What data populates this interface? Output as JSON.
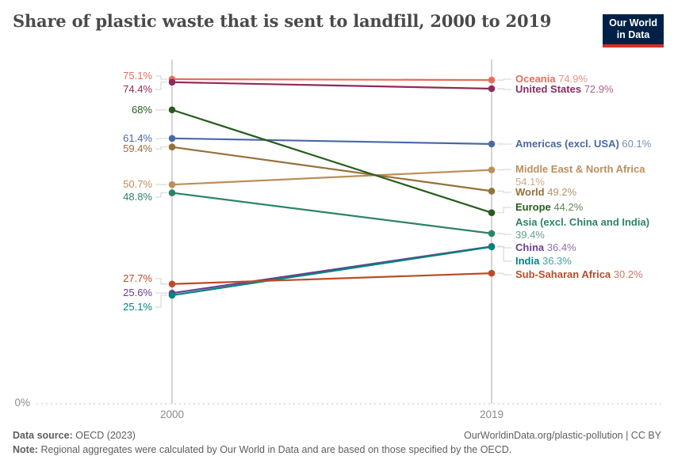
{
  "header": {
    "logo": {
      "line1": "Our World",
      "line2": "in Data",
      "bg_color": "#002147",
      "accent_color": "#dc2c27"
    }
  },
  "chart_data": {
    "type": "line",
    "variant": "slope",
    "title": "Share of plastic waste that is sent to landfill, 2000 to 2019",
    "x": [
      2000,
      2019
    ],
    "x_tick_labels": [
      "2000",
      "2019"
    ],
    "y_axis": {
      "baseline_label": "0%",
      "ylim": [
        0,
        80
      ],
      "unit": "%"
    },
    "grid": "baseline-dotted",
    "legend_position": "right-inline-labels",
    "series": [
      {
        "name": "Oceania",
        "color": "#e56e5a",
        "values": [
          75.1,
          74.9
        ],
        "start_label": "75.1%",
        "end_label": "74.9%"
      },
      {
        "name": "United States",
        "color": "#8d2b5c",
        "values": [
          74.4,
          72.9
        ],
        "start_label": "74.4%",
        "end_label": "72.9%"
      },
      {
        "name": "Americas (excl. USA)",
        "color": "#4968a5",
        "values": [
          61.4,
          60.1
        ],
        "start_label": "61.4%",
        "end_label": "60.1%"
      },
      {
        "name": "Middle East & North Africa",
        "color": "#bc8e5a",
        "values": [
          50.7,
          54.1
        ],
        "start_label": "50.7%",
        "end_label": "54.1%"
      },
      {
        "name": "World",
        "color": "#96703a",
        "values": [
          59.4,
          49.2
        ],
        "start_label": "59.4%",
        "end_label": "49.2%"
      },
      {
        "name": "Europe",
        "color": "#265c1d",
        "values": [
          68,
          44.2
        ],
        "start_label": "68%",
        "end_label": "44.2%"
      },
      {
        "name": "Asia (excl. China and India)",
        "color": "#2c8465",
        "values": [
          48.8,
          39.4
        ],
        "start_label": "48.8%",
        "end_label": "39.4%"
      },
      {
        "name": "China",
        "color": "#6d3e91",
        "values": [
          25.6,
          36.4
        ],
        "start_label": "25.6%",
        "end_label": "36.4%"
      },
      {
        "name": "India",
        "color": "#00847e",
        "values": [
          25.1,
          36.3
        ],
        "start_label": "25.1%",
        "end_label": "36.3%"
      },
      {
        "name": "Sub-Saharan Africa",
        "color": "#ba4c28",
        "values": [
          27.7,
          30.2
        ],
        "start_label": "27.7%",
        "end_label": "30.2%"
      }
    ]
  },
  "footer": {
    "source_label": "Data source:",
    "source_value": "OECD (2023)",
    "rights": "OurWorldinData.org/plastic-pollution | CC BY",
    "note_label": "Note:",
    "note_value": "Regional aggregates were calculated by Our World in Data and are based on those specified by the OECD."
  }
}
